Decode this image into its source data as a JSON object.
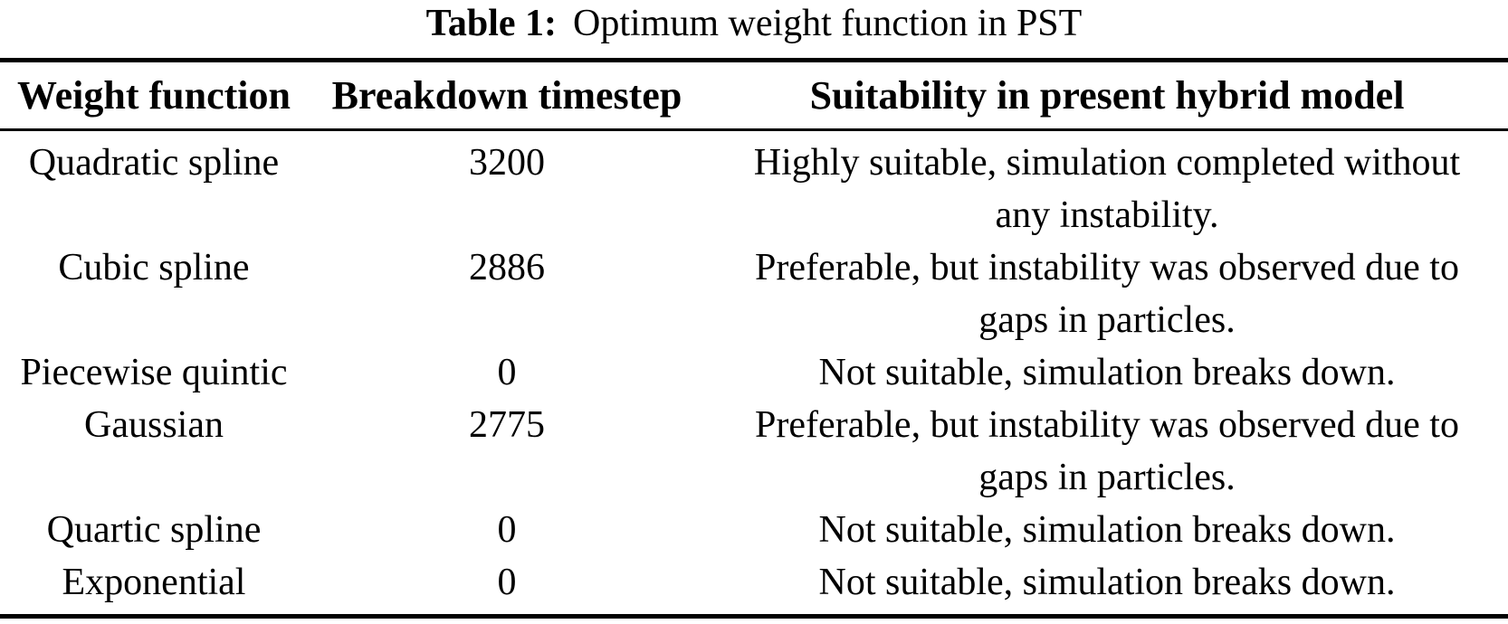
{
  "paper_table": {
    "caption": {
      "label": "Table 1:",
      "text": "Optimum weight function in PST"
    },
    "columns": {
      "weight_function": "Weight function",
      "breakdown_timestep": "Breakdown timestep",
      "suitability": "Suitability in present hybrid model"
    },
    "rows": [
      {
        "weight_function": "Quadratic spline",
        "breakdown_timestep": "3200",
        "suitability_lines": [
          "Highly suitable, simulation completed without",
          "any instability."
        ]
      },
      {
        "weight_function": "Cubic spline",
        "breakdown_timestep": "2886",
        "suitability_lines": [
          "Preferable, but instability was observed due to",
          "gaps in particles."
        ]
      },
      {
        "weight_function": "Piecewise quintic",
        "breakdown_timestep": "0",
        "suitability_lines": [
          "Not suitable, simulation breaks down."
        ]
      },
      {
        "weight_function": "Gaussian",
        "breakdown_timestep": "2775",
        "suitability_lines": [
          "Preferable, but instability was observed due to",
          "gaps in particles."
        ]
      },
      {
        "weight_function": "Quartic spline",
        "breakdown_timestep": "0",
        "suitability_lines": [
          "Not suitable, simulation breaks down."
        ]
      },
      {
        "weight_function": "Exponential",
        "breakdown_timestep": "0",
        "suitability_lines": [
          "Not suitable, simulation breaks down."
        ]
      }
    ],
    "colors": {
      "text": "#000000",
      "background": "#ffffff",
      "rule": "#000000"
    }
  },
  "chart_data": {
    "type": "table",
    "title": "Table 1: Optimum weight function in PST",
    "columns": [
      "Weight function",
      "Breakdown timestep",
      "Suitability in present hybrid model"
    ],
    "rows": [
      [
        "Quadratic spline",
        "3200",
        "Highly suitable, simulation completed without any instability."
      ],
      [
        "Cubic spline",
        "2886",
        "Preferable, but instability was observed due to gaps in particles."
      ],
      [
        "Piecewise quintic",
        "0",
        "Not suitable, simulation breaks down."
      ],
      [
        "Gaussian",
        "2775",
        "Preferable, but instability was observed due to gaps in particles."
      ],
      [
        "Quartic spline",
        "0",
        "Not suitable, simulation breaks down."
      ],
      [
        "Exponential",
        "0",
        "Not suitable, simulation breaks down."
      ]
    ]
  }
}
